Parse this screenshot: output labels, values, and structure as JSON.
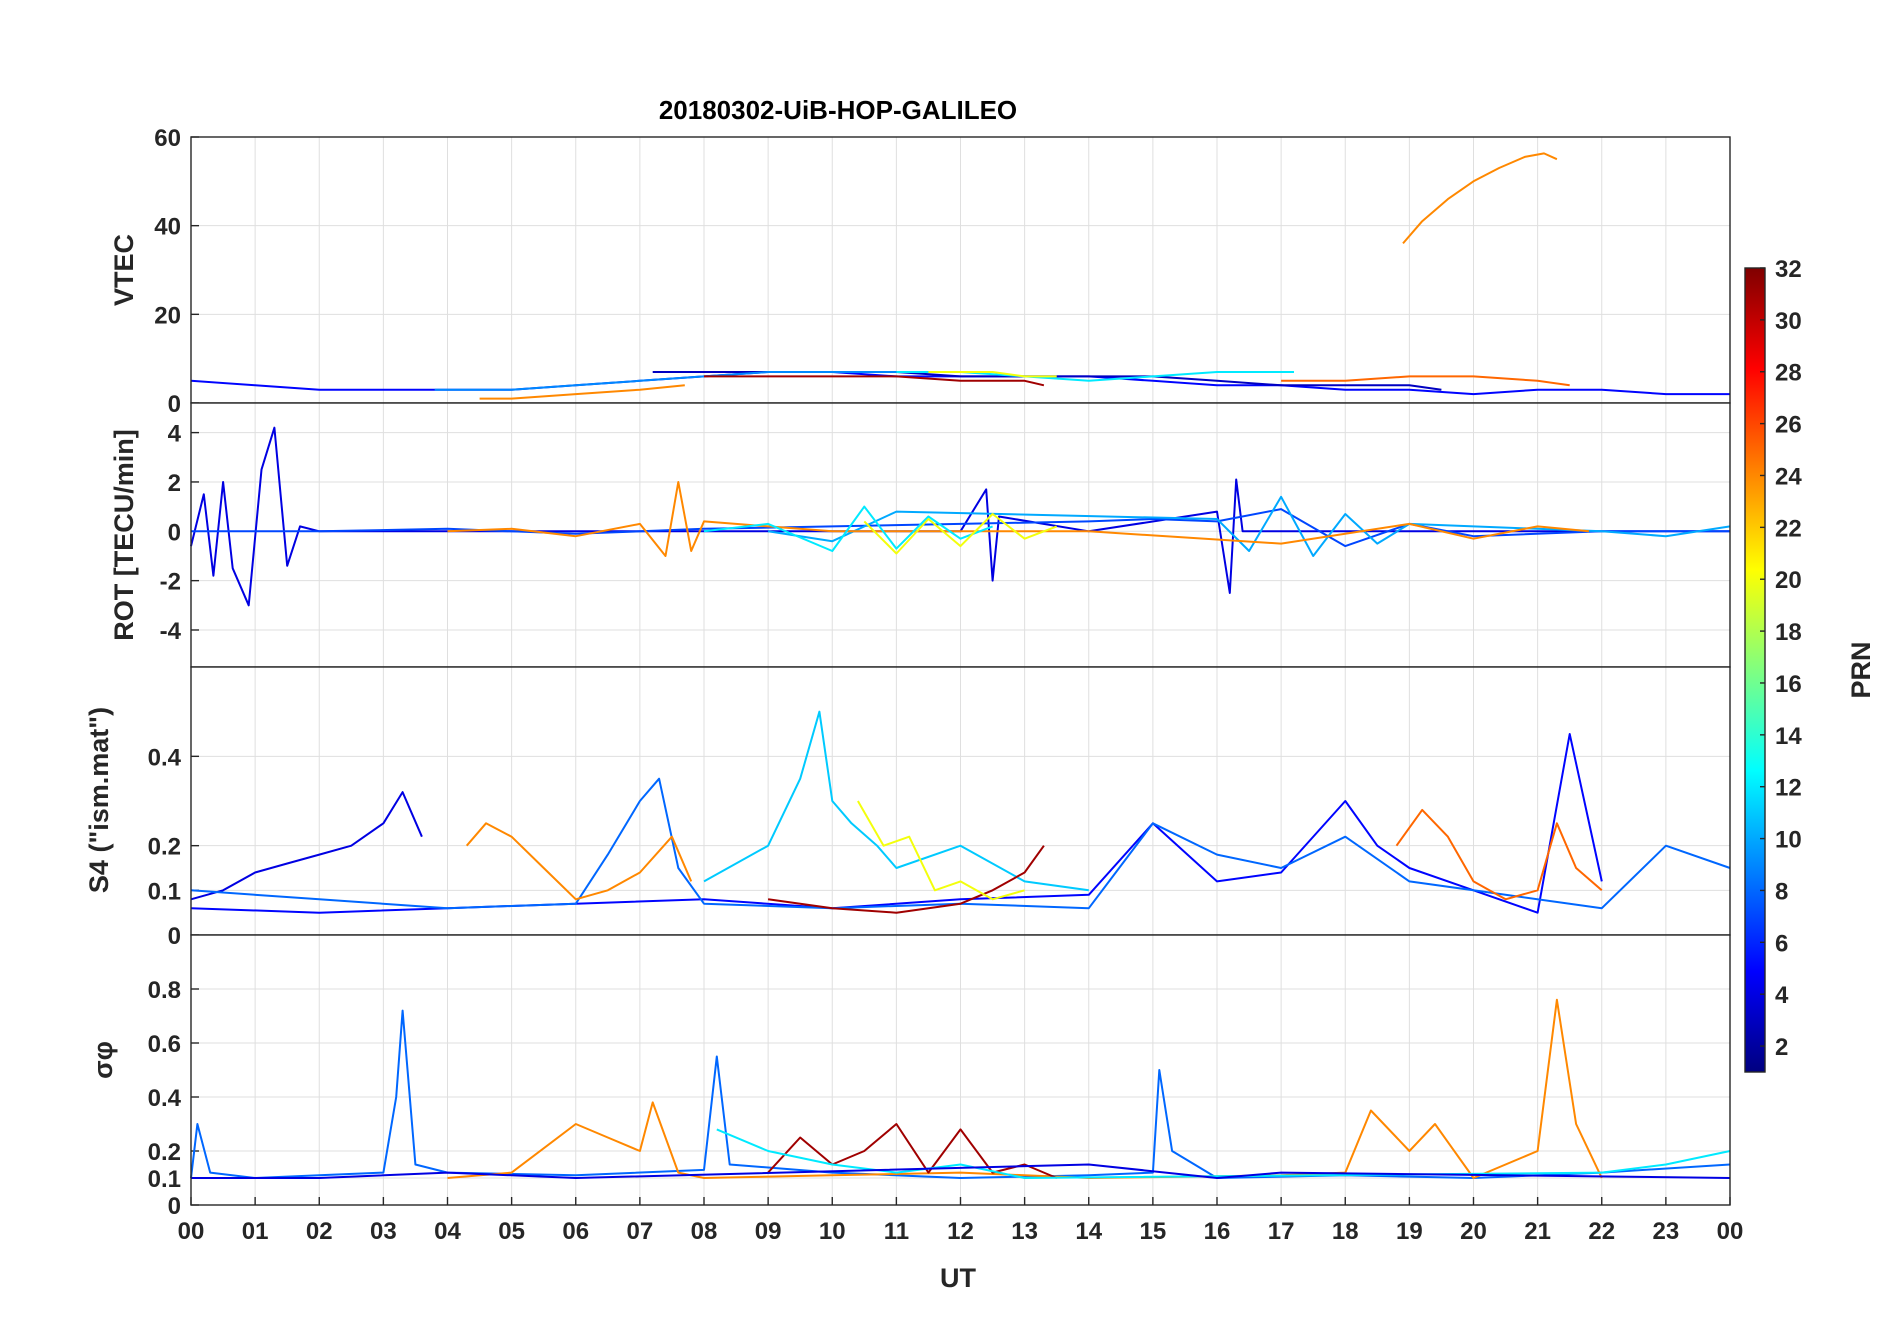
{
  "chart_data": {
    "type": "line",
    "title": "20180302-UiB-HOP-GALILEO",
    "xlabel": "UT",
    "x_range": [
      0,
      24
    ],
    "x_tick_labels": [
      "00",
      "01",
      "02",
      "03",
      "04",
      "05",
      "06",
      "07",
      "08",
      "09",
      "10",
      "11",
      "12",
      "13",
      "14",
      "15",
      "16",
      "17",
      "18",
      "19",
      "20",
      "21",
      "22",
      "23",
      "00"
    ],
    "colorbar": {
      "label": "PRN",
      "range": [
        1,
        32
      ],
      "tick_labels": [
        "2",
        "4",
        "6",
        "8",
        "10",
        "12",
        "14",
        "16",
        "18",
        "20",
        "22",
        "24",
        "26",
        "28",
        "30",
        "32"
      ]
    },
    "panels": [
      {
        "id": "vtec",
        "ylabel": "VTEC",
        "ylim": [
          0,
          60
        ],
        "y_tick_labels": [
          "0",
          "20",
          "40",
          "60"
        ],
        "series": [
          {
            "prn": 5,
            "x": [
              0,
              1,
              2,
              3,
              4,
              5,
              6,
              7,
              8,
              9,
              10,
              11,
              12,
              13,
              14,
              15,
              16,
              17,
              18,
              19,
              20,
              21,
              22,
              23,
              24
            ],
            "y": [
              5,
              4,
              3,
              3,
              3,
              3,
              4,
              5,
              6,
              7,
              7,
              6,
              6,
              6,
              6,
              5,
              4,
              4,
              3,
              3,
              2,
              3,
              3,
              2,
              2
            ]
          },
          {
            "prn": 3,
            "x": [
              7.2,
              8,
              9,
              10,
              11,
              12,
              13,
              14,
              15,
              16,
              17,
              18,
              19,
              19.5
            ],
            "y": [
              7,
              7,
              7,
              7,
              7,
              6,
              6,
              6,
              6,
              5,
              4,
              4,
              4,
              3
            ]
          },
          {
            "prn": 9,
            "x": [
              3.8,
              5,
              6,
              7,
              8,
              9,
              10,
              11
            ],
            "y": [
              3,
              3,
              4,
              5,
              6,
              7,
              7,
              7
            ]
          },
          {
            "prn": 12,
            "x": [
              11,
              12,
              13,
              14,
              15,
              16,
              17.2
            ],
            "y": [
              7,
              7,
              6,
              5,
              6,
              7,
              7
            ]
          },
          {
            "prn": 24,
            "x": [
              4.5,
              5,
              6,
              7,
              7.7
            ],
            "y": [
              1,
              1,
              2,
              3,
              4
            ]
          },
          {
            "prn": 25,
            "x": [
              17,
              18,
              19,
              20,
              21,
              21.5
            ],
            "y": [
              5,
              5,
              6,
              6,
              5,
              4
            ]
          },
          {
            "prn": 31,
            "x": [
              8,
              9,
              10,
              11,
              12,
              13,
              13.3
            ],
            "y": [
              6,
              6,
              6,
              6,
              5,
              5,
              4
            ]
          },
          {
            "prn": 20,
            "x": [
              11.5,
              12,
              12.5,
              13,
              13.5
            ],
            "y": [
              7,
              7,
              7,
              6,
              6
            ]
          },
          {
            "prn": 24,
            "x": [
              18.9,
              19.2,
              19.6,
              20,
              20.4,
              20.8,
              21.1,
              21.3
            ],
            "y": [
              36,
              41,
              46,
              50,
              53,
              55.5,
              56.3,
              55
            ]
          }
        ]
      },
      {
        "id": "rot",
        "ylabel": "ROT [TECU/min]",
        "ylim": [
          -5.5,
          5.2
        ],
        "y_tick_labels": [
          "-4",
          "-2",
          "0",
          "2",
          "4"
        ],
        "series": [
          {
            "prn": 4,
            "x": [
              0,
              0.2,
              0.35,
              0.5,
              0.65,
              0.9,
              1.1,
              1.3,
              1.5,
              1.7,
              2,
              4,
              6,
              8,
              10,
              12,
              12.4,
              12.5,
              12.6,
              14,
              16,
              16.2,
              16.3,
              16.4,
              18,
              20,
              22,
              24
            ],
            "y": [
              -0.6,
              1.5,
              -1.8,
              2,
              -1.5,
              -3,
              2.5,
              4.2,
              -1.4,
              0.2,
              0,
              0,
              0,
              0,
              0,
              0,
              1.7,
              -2,
              0.6,
              0,
              0.8,
              -2.5,
              2.1,
              0,
              0,
              0,
              0,
              0
            ]
          },
          {
            "prn": 7,
            "x": [
              0,
              2,
              4,
              6,
              8,
              10,
              12,
              14,
              15,
              16,
              17,
              18,
              19,
              20,
              22,
              24
            ],
            "y": [
              0,
              0,
              0.1,
              -0.1,
              0.1,
              0.2,
              0.3,
              0.4,
              0.5,
              0.4,
              0.9,
              -0.6,
              0.3,
              -0.2,
              0,
              0
            ]
          },
          {
            "prn": 10,
            "x": [
              9,
              10,
              11,
              16,
              16.5,
              17,
              17.5,
              18,
              18.5,
              19,
              22,
              23,
              24
            ],
            "y": [
              0,
              -0.4,
              0.8,
              0.5,
              -0.8,
              1.4,
              -1,
              0.7,
              -0.5,
              0.3,
              0,
              -0.2,
              0.2
            ]
          },
          {
            "prn": 24,
            "x": [
              4,
              5,
              6,
              7,
              7.4,
              7.6,
              7.8,
              8,
              10,
              12,
              14,
              17,
              19,
              20,
              21,
              21.8
            ],
            "y": [
              0,
              0.1,
              -0.2,
              0.3,
              -1,
              2,
              -0.8,
              0.4,
              0,
              0,
              0,
              -0.5,
              0.3,
              -0.3,
              0.2,
              0
            ]
          },
          {
            "prn": 12,
            "x": [
              8,
              9,
              10,
              10.5,
              11,
              11.5,
              12,
              12.5
            ],
            "y": [
              0,
              0.3,
              -0.8,
              1,
              -0.7,
              0.6,
              -0.3,
              0.2
            ]
          },
          {
            "prn": 20,
            "x": [
              10.5,
              11,
              11.5,
              12,
              12.5,
              13,
              13.5
            ],
            "y": [
              0.4,
              -0.9,
              0.5,
              -0.6,
              0.7,
              -0.3,
              0.2
            ]
          }
        ]
      },
      {
        "id": "s4",
        "ylabel": "S4 (\"ism.mat\")",
        "ylim": [
          0,
          0.6
        ],
        "y_tick_labels": [
          "0",
          "0.1",
          "0.2",
          "0.4"
        ],
        "series": [
          {
            "prn": 4,
            "x": [
              0,
              0.5,
              1,
              1.5,
              2,
              2.5,
              3,
              3.3,
              3.6
            ],
            "y": [
              0.08,
              0.1,
              0.14,
              0.16,
              0.18,
              0.2,
              0.25,
              0.32,
              0.22
            ]
          },
          {
            "prn": 5,
            "x": [
              0,
              2,
              4,
              6,
              8,
              10,
              12,
              14,
              15,
              16,
              17,
              18,
              18.5,
              19,
              20,
              21,
              21.5,
              22
            ],
            "y": [
              0.06,
              0.05,
              0.06,
              0.07,
              0.08,
              0.06,
              0.08,
              0.09,
              0.25,
              0.12,
              0.14,
              0.3,
              0.2,
              0.15,
              0.1,
              0.05,
              0.45,
              0.12
            ]
          },
          {
            "prn": 8,
            "x": [
              0,
              2,
              4,
              6,
              6.5,
              7,
              7.3,
              7.6,
              8,
              10,
              12,
              14,
              15,
              16,
              17,
              18,
              19,
              20,
              22,
              23,
              24
            ],
            "y": [
              0.1,
              0.08,
              0.06,
              0.07,
              0.18,
              0.3,
              0.35,
              0.15,
              0.07,
              0.06,
              0.07,
              0.06,
              0.25,
              0.18,
              0.15,
              0.22,
              0.12,
              0.1,
              0.06,
              0.2,
              0.15
            ]
          },
          {
            "prn": 11,
            "x": [
              8,
              9,
              9.5,
              9.8,
              10,
              10.3,
              10.7,
              11,
              12,
              13,
              14
            ],
            "y": [
              0.12,
              0.2,
              0.35,
              0.5,
              0.3,
              0.25,
              0.2,
              0.15,
              0.2,
              0.12,
              0.1
            ]
          },
          {
            "prn": 24,
            "x": [
              4.3,
              4.6,
              5,
              5.5,
              6,
              6.5,
              7,
              7.5,
              7.8
            ],
            "y": [
              0.2,
              0.25,
              0.22,
              0.15,
              0.08,
              0.1,
              0.14,
              0.22,
              0.12
            ]
          },
          {
            "prn": 25,
            "x": [
              18.8,
              19.2,
              19.6,
              20,
              20.5,
              21,
              21.3,
              21.6,
              22
            ],
            "y": [
              0.2,
              0.28,
              0.22,
              0.12,
              0.08,
              0.1,
              0.25,
              0.15,
              0.1
            ]
          },
          {
            "prn": 31,
            "x": [
              9,
              10,
              11,
              12,
              12.5,
              13,
              13.3
            ],
            "y": [
              0.08,
              0.06,
              0.05,
              0.07,
              0.1,
              0.14,
              0.2
            ]
          },
          {
            "prn": 20,
            "x": [
              10.4,
              10.8,
              11.2,
              11.6,
              12,
              12.5,
              13
            ],
            "y": [
              0.3,
              0.2,
              0.22,
              0.1,
              0.12,
              0.08,
              0.1
            ]
          }
        ]
      },
      {
        "id": "sigma_phi",
        "ylabel": "σφ",
        "ylim": [
          0,
          1
        ],
        "y_tick_labels": [
          "0",
          "0.1",
          "0.2",
          "0.4",
          "0.6",
          "0.8"
        ],
        "series": [
          {
            "prn": 8,
            "x": [
              0,
              0.1,
              0.3,
              1,
              2,
              3,
              3.2,
              3.3,
              3.5,
              4,
              6,
              8,
              8.2,
              8.4,
              10,
              12,
              14,
              15,
              15.1,
              15.3,
              16,
              18,
              20,
              22,
              24
            ],
            "y": [
              0.1,
              0.3,
              0.12,
              0.1,
              0.11,
              0.12,
              0.4,
              0.72,
              0.15,
              0.12,
              0.11,
              0.13,
              0.55,
              0.15,
              0.12,
              0.1,
              0.11,
              0.12,
              0.5,
              0.2,
              0.1,
              0.11,
              0.1,
              0.12,
              0.15
            ]
          },
          {
            "prn": 24,
            "x": [
              4,
              5,
              6,
              6.5,
              7,
              7.2,
              7.6,
              8,
              10,
              12,
              14,
              17,
              18,
              18.4,
              19,
              19.4,
              20,
              21,
              21.3,
              21.6,
              22
            ],
            "y": [
              0.1,
              0.12,
              0.3,
              0.25,
              0.2,
              0.38,
              0.12,
              0.1,
              0.11,
              0.12,
              0.1,
              0.11,
              0.12,
              0.35,
              0.2,
              0.3,
              0.1,
              0.2,
              0.76,
              0.3,
              0.1
            ]
          },
          {
            "prn": 31,
            "x": [
              9,
              9.5,
              10,
              10.5,
              11,
              11.5,
              12,
              12.5,
              13,
              13.5
            ],
            "y": [
              0.12,
              0.25,
              0.15,
              0.2,
              0.3,
              0.12,
              0.28,
              0.12,
              0.15,
              0.1
            ]
          },
          {
            "prn": 12,
            "x": [
              8.2,
              9,
              10,
              11,
              12,
              13,
              22,
              23,
              24
            ],
            "y": [
              0.28,
              0.2,
              0.15,
              0.12,
              0.15,
              0.1,
              0.12,
              0.15,
              0.2
            ]
          },
          {
            "prn": 4,
            "x": [
              0,
              1,
              2,
              4,
              6,
              14,
              16,
              17,
              24
            ],
            "y": [
              0.1,
              0.1,
              0.1,
              0.12,
              0.1,
              0.15,
              0.1,
              0.12,
              0.1
            ]
          }
        ]
      }
    ]
  }
}
